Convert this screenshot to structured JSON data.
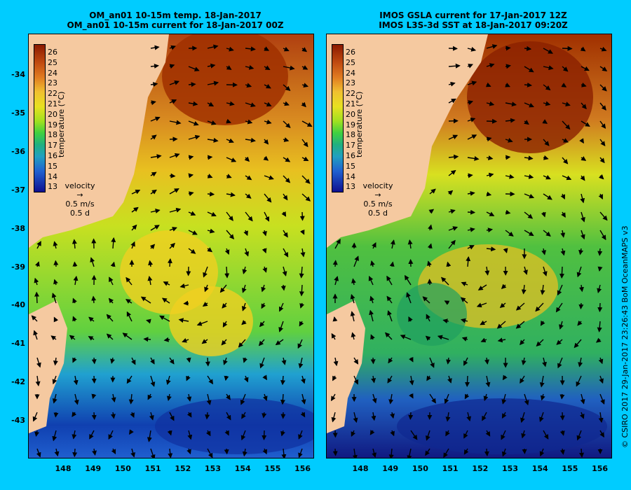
{
  "left_panel": {
    "title_line1": "OM_an01 10-15m temp. 18-Jan-2017",
    "title_line2": "OM_an01 10-15m current for 18-Jan-2017 00Z"
  },
  "right_panel": {
    "title_line1": "IMOS GSLA current for 17-Jan-2017 12Z",
    "title_line2": "IMOS L3S-3d SST at 18-Jan-2017 09:20Z"
  },
  "y_axis_labels": [
    "-34",
    "-35",
    "-36",
    "-37",
    "-38",
    "-39",
    "-40",
    "-41",
    "-42",
    "-43"
  ],
  "x_axis_labels": [
    "148",
    "149",
    "150",
    "151",
    "152",
    "153",
    "154",
    "155",
    "156"
  ],
  "colorbar": {
    "title": "temperature (°C)",
    "ticks": [
      "26",
      "25",
      "24",
      "23",
      "22",
      "21",
      "20",
      "19",
      "18",
      "17",
      "16",
      "15",
      "14",
      "13"
    ]
  },
  "velocity_key": {
    "line1": "velocity",
    "line2": "0.5 m/s",
    "line3": "0.5 d"
  },
  "copyright": "© CSIRO 2017   29-Jan-2017 23:26:43 BoM OceanMAPS v3",
  "colors": {
    "background": "#00ccff",
    "land": "#f5c9a0",
    "no_data": "#c8a890"
  }
}
